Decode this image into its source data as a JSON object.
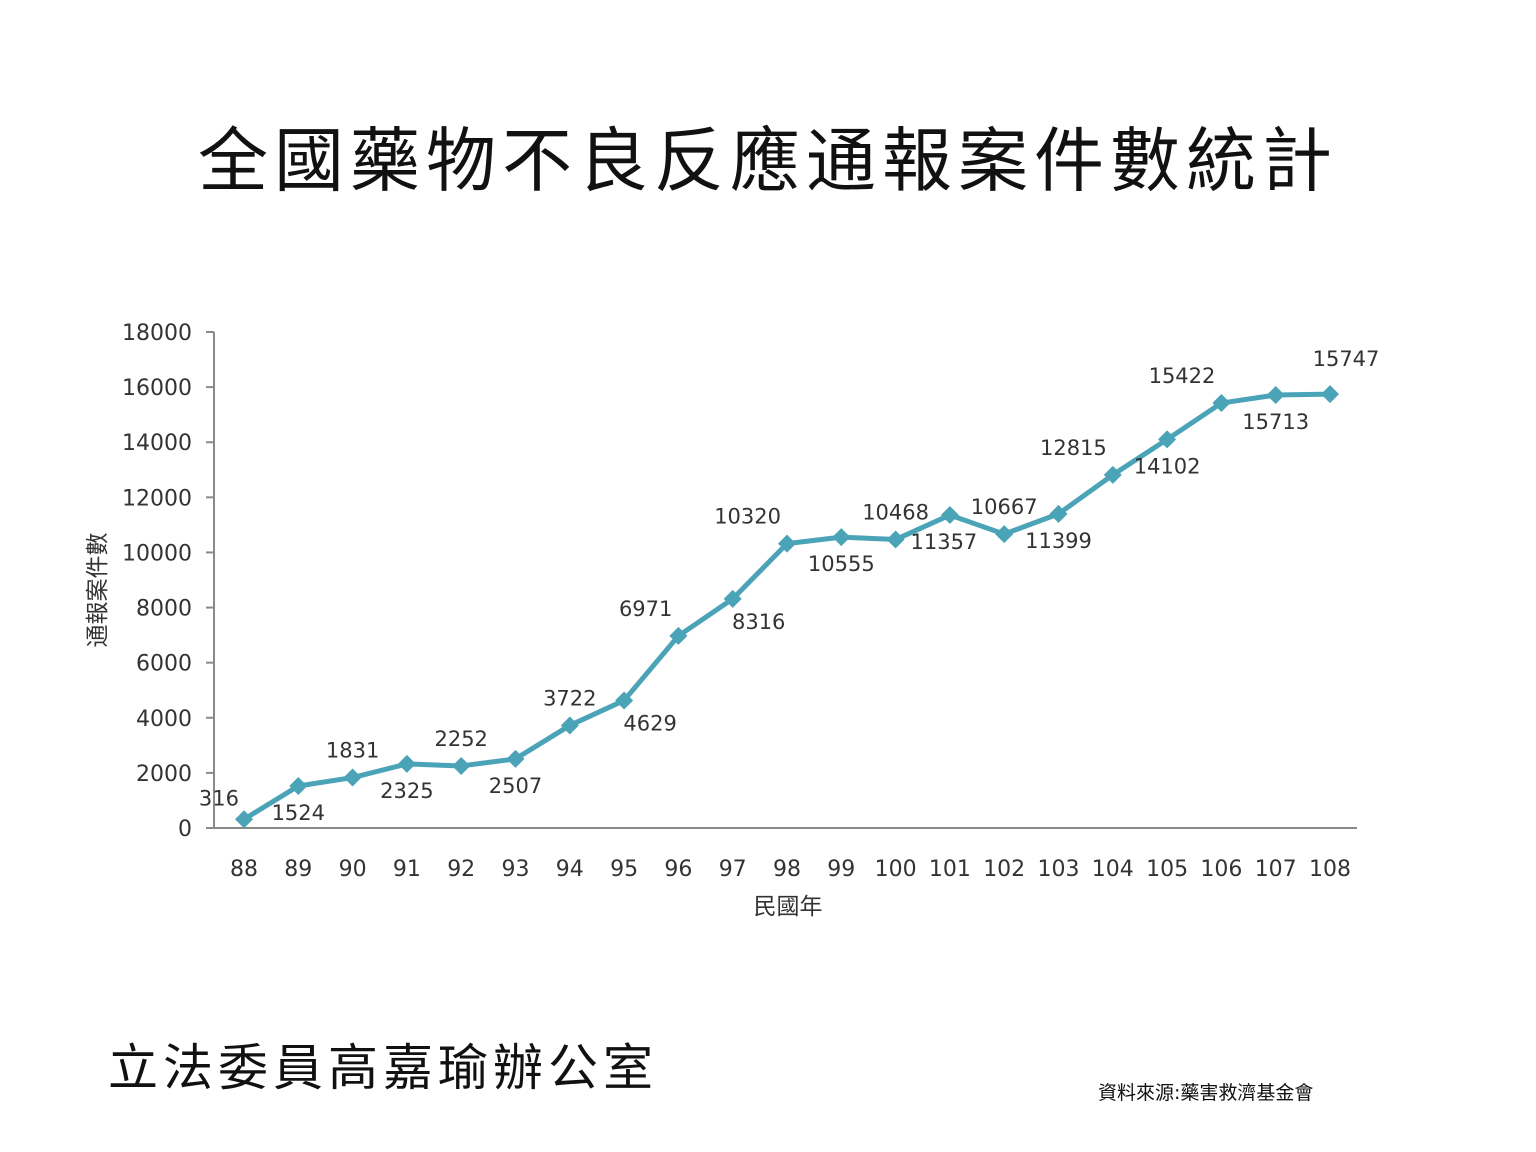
{
  "title": "全國藥物不良反應通報案件數統計",
  "footer": {
    "office": "立法委員高嘉瑜辦公室",
    "source": "資料來源:藥害救濟基金會"
  },
  "chart_data": {
    "type": "line",
    "title": "",
    "xlabel": "民國年",
    "ylabel": "通報案件數",
    "categories": [
      "88",
      "89",
      "90",
      "91",
      "92",
      "93",
      "94",
      "95",
      "96",
      "97",
      "98",
      "99",
      "100",
      "101",
      "102",
      "103",
      "104",
      "105",
      "106",
      "107",
      "108"
    ],
    "series": [
      {
        "values": [
          316,
          1524,
          1831,
          2325,
          2252,
          2507,
          3722,
          4629,
          6971,
          8316,
          10320,
          10555,
          10468,
          11357,
          10667,
          11399,
          12815,
          14102,
          15422,
          15713,
          15747
        ],
        "color": "#4BA3B8",
        "marker": "diamond"
      }
    ],
    "ylim": [
      0,
      18000
    ],
    "yticks": [
      0,
      2000,
      4000,
      6000,
      8000,
      10000,
      12000,
      14000,
      16000,
      18000
    ],
    "grid": false,
    "legend": "none",
    "data_labels": true
  }
}
